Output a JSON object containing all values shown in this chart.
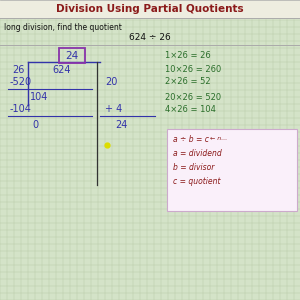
{
  "title": "Division Using Partial Quotients",
  "subtitle": "long division, find the quotient",
  "problem": "624 ÷ 26",
  "bg_color": "#d4e3c8",
  "header_bg": "#eeede0",
  "grid_color": "#b5c9a5",
  "title_color": "#8b1a1a",
  "main_color": "#3333aa",
  "green_color": "#2a6e2a",
  "red_color": "#8b1a1a",
  "box_color": "#8833aa",
  "annotation_bg": "#faf0fa",
  "annotation_border": "#bbaacc"
}
